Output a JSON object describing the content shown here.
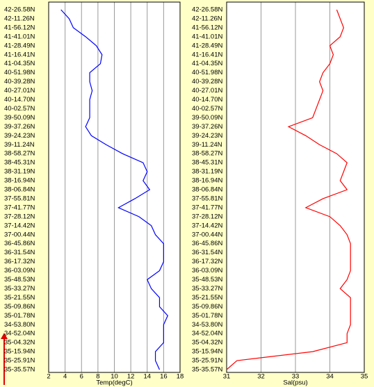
{
  "chart_data": [
    {
      "type": "line",
      "xlabel": "Temp(degC)",
      "categories": [
        "42-26.58N",
        "42-11.26N",
        "41-56.12N",
        "41-41.01N",
        "41-28.49N",
        "41-16.41N",
        "41-04.35N",
        "40-51.98N",
        "40-39.28N",
        "40-27.01N",
        "40-14.70N",
        "40-02.57N",
        "39-50.09N",
        "39-37.26N",
        "39-24.23N",
        "39-11.24N",
        "38-58.27N",
        "38-45.31N",
        "38-31.19N",
        "38-16.94N",
        "38-06.84N",
        "37-55.81N",
        "37-41.77N",
        "37-28.12N",
        "37-14.42N",
        "37-00.44N",
        "36-45.86N",
        "36-31.54N",
        "36-17.32N",
        "36-03.09N",
        "35-48.53N",
        "35-33.27N",
        "35-21.55N",
        "35-09.86N",
        "35-01.78N",
        "34-53.80N",
        "34-52.04N",
        "35-04.32N",
        "35-15.94N",
        "35-25.91N",
        "35-35.57N"
      ],
      "series": [
        {
          "color": "#0000ff",
          "values": [
            3.5,
            4.5,
            5,
            6.5,
            7.8,
            8.5,
            8.3,
            7,
            7,
            7.3,
            7,
            7,
            7,
            6.5,
            7.2,
            9,
            11,
            13.5,
            14,
            13.5,
            14.3,
            12.5,
            10.5,
            13,
            14.5,
            15,
            16,
            16,
            16,
            15.5,
            14,
            14.5,
            15.5,
            15.5,
            16.5,
            16,
            16,
            16,
            15,
            15,
            15.5
          ]
        }
      ],
      "xlim": [
        2,
        18
      ],
      "xticks": [
        2,
        4,
        6,
        8,
        10,
        12,
        14,
        16,
        18
      ],
      "grid": true
    },
    {
      "type": "line",
      "xlabel": "Sal(psu)",
      "categories": [
        "42-26.58N",
        "42-11.26N",
        "41-56.12N",
        "41-41.01N",
        "41-28.49N",
        "41-16.41N",
        "41-04.35N",
        "40-51.98N",
        "40-39.28N",
        "40-27.01N",
        "40-14.70N",
        "40-02.57N",
        "39-50.09N",
        "39-37.26N",
        "39-24.23N",
        "39-11.24N",
        "38-58.27N",
        "38-45.31N",
        "38-31.19N",
        "38-16.94N",
        "38-06.84N",
        "37-55.81N",
        "37-41.77N",
        "37-28.12N",
        "37-14.42N",
        "37-00.44N",
        "36-45.86N",
        "36-31.54N",
        "36-17.32N",
        "36-03.09N",
        "35-48.53N",
        "35-33.27N",
        "35-21.55N",
        "35-09.86N",
        "35-01.78N",
        "34-53.80N",
        "34-52.04N",
        "35-04.32N",
        "35-15.94N",
        "35-25.91N",
        "35-35.57N"
      ],
      "series": [
        {
          "color": "#ff0000",
          "values": [
            34.2,
            34.3,
            34.4,
            34.3,
            34,
            34.1,
            34,
            33.8,
            33.7,
            33.8,
            33.7,
            33.6,
            33.5,
            32.8,
            33.3,
            33.7,
            34.2,
            34.5,
            34.4,
            34.3,
            34.5,
            33.8,
            33.3,
            34,
            34.3,
            34.5,
            34.6,
            34.6,
            34.6,
            34.6,
            34.5,
            34.3,
            34.6,
            34.6,
            34.6,
            34.6,
            34.5,
            34.5,
            33.5,
            31.3,
            31
          ]
        }
      ],
      "xlim": [
        31,
        35
      ],
      "xticks": [
        31,
        32,
        33,
        34,
        35
      ],
      "grid": true
    }
  ]
}
